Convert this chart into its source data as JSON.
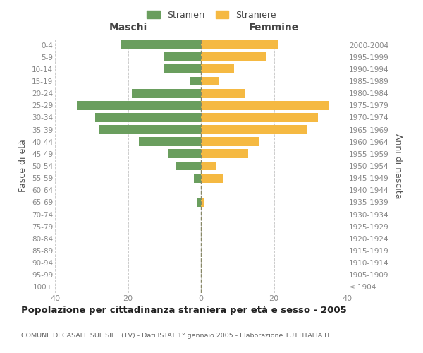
{
  "age_groups": [
    "100+",
    "95-99",
    "90-94",
    "85-89",
    "80-84",
    "75-79",
    "70-74",
    "65-69",
    "60-64",
    "55-59",
    "50-54",
    "45-49",
    "40-44",
    "35-39",
    "30-34",
    "25-29",
    "20-24",
    "15-19",
    "10-14",
    "5-9",
    "0-4"
  ],
  "birth_years": [
    "≤ 1904",
    "1905-1909",
    "1910-1914",
    "1915-1919",
    "1920-1924",
    "1925-1929",
    "1930-1934",
    "1935-1939",
    "1940-1944",
    "1945-1949",
    "1950-1954",
    "1955-1959",
    "1960-1964",
    "1965-1969",
    "1970-1974",
    "1975-1979",
    "1980-1984",
    "1985-1989",
    "1990-1994",
    "1995-1999",
    "2000-2004"
  ],
  "maschi": [
    0,
    0,
    0,
    0,
    0,
    0,
    0,
    1,
    0,
    2,
    7,
    9,
    17,
    28,
    29,
    34,
    19,
    3,
    10,
    10,
    22
  ],
  "femmine": [
    0,
    0,
    0,
    0,
    0,
    0,
    0,
    1,
    0,
    6,
    4,
    13,
    16,
    29,
    32,
    35,
    12,
    5,
    9,
    18,
    21
  ],
  "color_maschi": "#6a9e5e",
  "color_femmine": "#f5b942",
  "title": "Popolazione per cittadinanza straniera per età e sesso - 2005",
  "subtitle": "COMUNE DI CASALE SUL SILE (TV) - Dati ISTAT 1° gennaio 2005 - Elaborazione TUTTITALIA.IT",
  "header_left": "Maschi",
  "header_right": "Femmine",
  "ylabel_left": "Fasce di età",
  "ylabel_right": "Anni di nascita",
  "legend_maschi": "Stranieri",
  "legend_femmine": "Straniere",
  "xlim": 40,
  "background_color": "#ffffff",
  "grid_color": "#cccccc"
}
